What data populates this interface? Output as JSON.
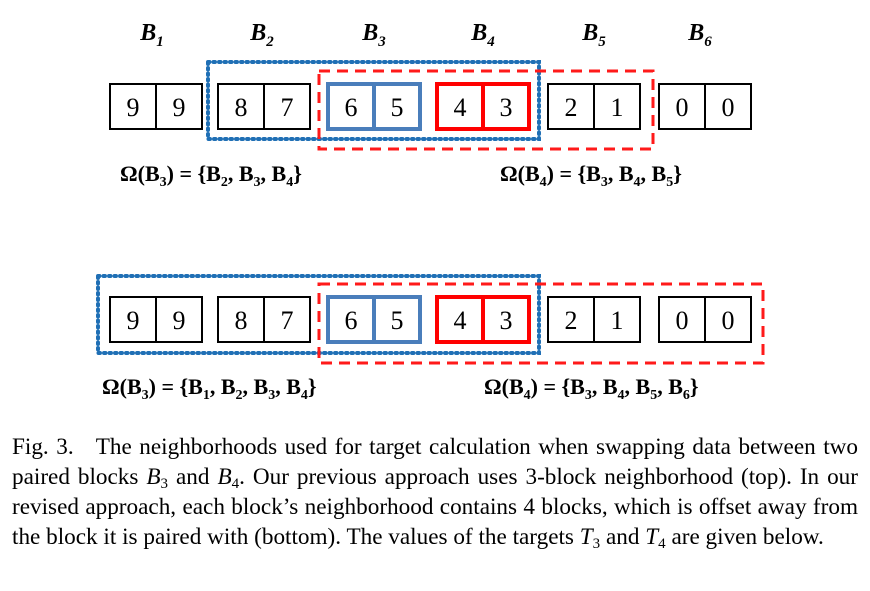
{
  "figure": {
    "block_labels": [
      {
        "base": "B",
        "sub": "1"
      },
      {
        "base": "B",
        "sub": "2"
      },
      {
        "base": "B",
        "sub": "3"
      },
      {
        "base": "B",
        "sub": "4"
      },
      {
        "base": "B",
        "sub": "5"
      },
      {
        "base": "B",
        "sub": "6"
      }
    ],
    "blocks": [
      {
        "values": [
          "9",
          "9"
        ],
        "highlight": "none"
      },
      {
        "values": [
          "8",
          "7"
        ],
        "highlight": "none"
      },
      {
        "values": [
          "6",
          "5"
        ],
        "highlight": "blue"
      },
      {
        "values": [
          "4",
          "3"
        ],
        "highlight": "red"
      },
      {
        "values": [
          "2",
          "1"
        ],
        "highlight": "none"
      },
      {
        "values": [
          "0",
          "0"
        ],
        "highlight": "none"
      }
    ],
    "colors": {
      "blue": "#4a7ebb",
      "red": "#ff0000",
      "dotted_blue": "#1f6fb5",
      "dashed_red": "#ff1a1a",
      "black": "#000000"
    },
    "top": {
      "left_formula": [
        {
          "t": "Ω(",
          "s": false
        },
        {
          "t": "B",
          "s": false
        },
        {
          "t": "3",
          "s": true
        },
        {
          "t": ") =  {",
          "s": false
        },
        {
          "t": "B",
          "s": false
        },
        {
          "t": "2",
          "s": true
        },
        {
          "t": ", ",
          "s": false
        },
        {
          "t": "B",
          "s": false
        },
        {
          "t": "3",
          "s": true
        },
        {
          "t": ", ",
          "s": false
        },
        {
          "t": "B",
          "s": false
        },
        {
          "t": "4",
          "s": true
        },
        {
          "t": "}",
          "s": false
        }
      ],
      "right_formula": [
        {
          "t": "Ω(",
          "s": false
        },
        {
          "t": "B",
          "s": false
        },
        {
          "t": "4",
          "s": true
        },
        {
          "t": ") =  {",
          "s": false
        },
        {
          "t": "B",
          "s": false
        },
        {
          "t": "3",
          "s": true
        },
        {
          "t": ", ",
          "s": false
        },
        {
          "t": "B",
          "s": false
        },
        {
          "t": "4",
          "s": true
        },
        {
          "t": ", ",
          "s": false
        },
        {
          "t": "B",
          "s": false
        },
        {
          "t": "5",
          "s": true
        },
        {
          "t": "}",
          "s": false
        }
      ]
    },
    "bottom": {
      "left_formula": [
        {
          "t": "Ω(",
          "s": false
        },
        {
          "t": "B",
          "s": false
        },
        {
          "t": "3",
          "s": true
        },
        {
          "t": ") =  {",
          "s": false
        },
        {
          "t": "B",
          "s": false
        },
        {
          "t": "1",
          "s": true
        },
        {
          "t": ", ",
          "s": false
        },
        {
          "t": "B",
          "s": false
        },
        {
          "t": "2",
          "s": true
        },
        {
          "t": ", ",
          "s": false
        },
        {
          "t": "B",
          "s": false
        },
        {
          "t": "3",
          "s": true
        },
        {
          "t": ", ",
          "s": false
        },
        {
          "t": "B",
          "s": false
        },
        {
          "t": "4",
          "s": true
        },
        {
          "t": "}",
          "s": false
        }
      ],
      "right_formula": [
        {
          "t": "Ω(",
          "s": false
        },
        {
          "t": "B",
          "s": false
        },
        {
          "t": "4",
          "s": true
        },
        {
          "t": ") =  {",
          "s": false
        },
        {
          "t": "B",
          "s": false
        },
        {
          "t": "3",
          "s": true
        },
        {
          "t": ", ",
          "s": false
        },
        {
          "t": "B",
          "s": false
        },
        {
          "t": "4",
          "s": true
        },
        {
          "t": ", ",
          "s": false
        },
        {
          "t": "B",
          "s": false
        },
        {
          "t": "5",
          "s": true
        },
        {
          "t": ", ",
          "s": false
        },
        {
          "t": "B",
          "s": false
        },
        {
          "t": "6",
          "s": true
        },
        {
          "t": "}",
          "s": false
        }
      ]
    }
  },
  "caption": {
    "label": "Fig. 3.",
    "text1": "The neighborhoods used for target calculation when swapping data between two paired blocks ",
    "b3_base": "B",
    "b3_sub": "3",
    "and1": " and ",
    "b4_base": "B",
    "b4_sub": "4",
    "text2": ". Our previous approach uses 3-block neighborhood (top). In our revised approach, each block’s neighborhood contains 4 blocks, which is offset away from the block it is paired with (bottom). The values of the targets ",
    "t3_base": "T",
    "t3_sub": "3",
    "and2": " and ",
    "t4_base": "T",
    "t4_sub": "4",
    "text3": " are given below."
  }
}
